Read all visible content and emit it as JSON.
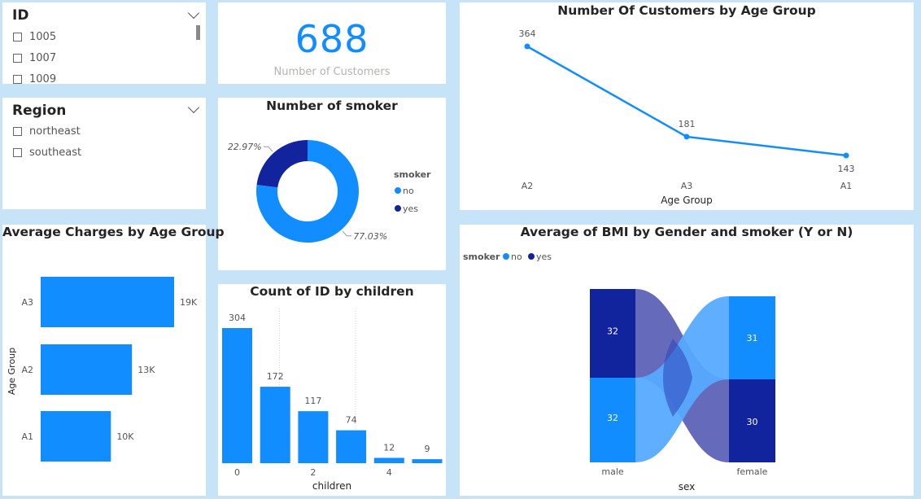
{
  "colors": {
    "primary": "#118dff",
    "dark": "#12239e",
    "light_no": "#57aaff",
    "link_dark": "#5d62b7",
    "link_mid": "#2d44b8"
  },
  "slicer_id": {
    "title": "ID",
    "options": [
      "1005",
      "1007",
      "1009"
    ]
  },
  "slicer_region": {
    "title": "Region",
    "options": [
      "northeast",
      "southeast"
    ]
  },
  "kpi": {
    "value": "688",
    "label": "Number of Customers"
  },
  "chart_data": [
    {
      "type": "donut",
      "title": "Number of smoker",
      "legend_title": "smoker",
      "legend_position": "right",
      "slices": [
        {
          "name": "no",
          "pct": 77.03,
          "label": "77.03%"
        },
        {
          "name": "yes",
          "pct": 22.97,
          "label": "22.97%"
        }
      ]
    },
    {
      "type": "line",
      "title": "Number Of Customers by Age Group",
      "xlabel": "Age Group",
      "categories": [
        "A2",
        "A3",
        "A1"
      ],
      "values": [
        364,
        181,
        143
      ],
      "labels": [
        "364",
        "181",
        "143"
      ]
    },
    {
      "type": "bar",
      "orientation": "horizontal",
      "title": "Average Charges by Age Group",
      "ylabel": "Age Group",
      "categories": [
        "A3",
        "A2",
        "A1"
      ],
      "values": [
        19000,
        13000,
        10000
      ],
      "labels": [
        "19K",
        "13K",
        "10K"
      ]
    },
    {
      "type": "bar",
      "title": "Count of ID by children",
      "xlabel": "children",
      "x": [
        0,
        1,
        2,
        3,
        4,
        5
      ],
      "values": [
        304,
        172,
        117,
        74,
        12,
        9
      ],
      "labels": [
        "304",
        "172",
        "117",
        "74",
        "12",
        "9"
      ],
      "tick_labels": [
        "0",
        "2",
        "4"
      ],
      "grid": "vertical dotted"
    },
    {
      "type": "ribbon",
      "title": "Average of BMI by Gender and smoker (Y or N)",
      "legend_title": "smoker",
      "legend_position": "top-left",
      "legend": [
        "no",
        "yes"
      ],
      "xlabel": "sex",
      "categories": [
        "male",
        "female"
      ],
      "series": [
        {
          "name": "no",
          "values": [
            32,
            31
          ]
        },
        {
          "name": "yes",
          "values": [
            32,
            30
          ]
        }
      ],
      "labels": {
        "male_yes": "32",
        "male_no": "32",
        "female_no": "31",
        "female_yes": "30"
      }
    }
  ]
}
